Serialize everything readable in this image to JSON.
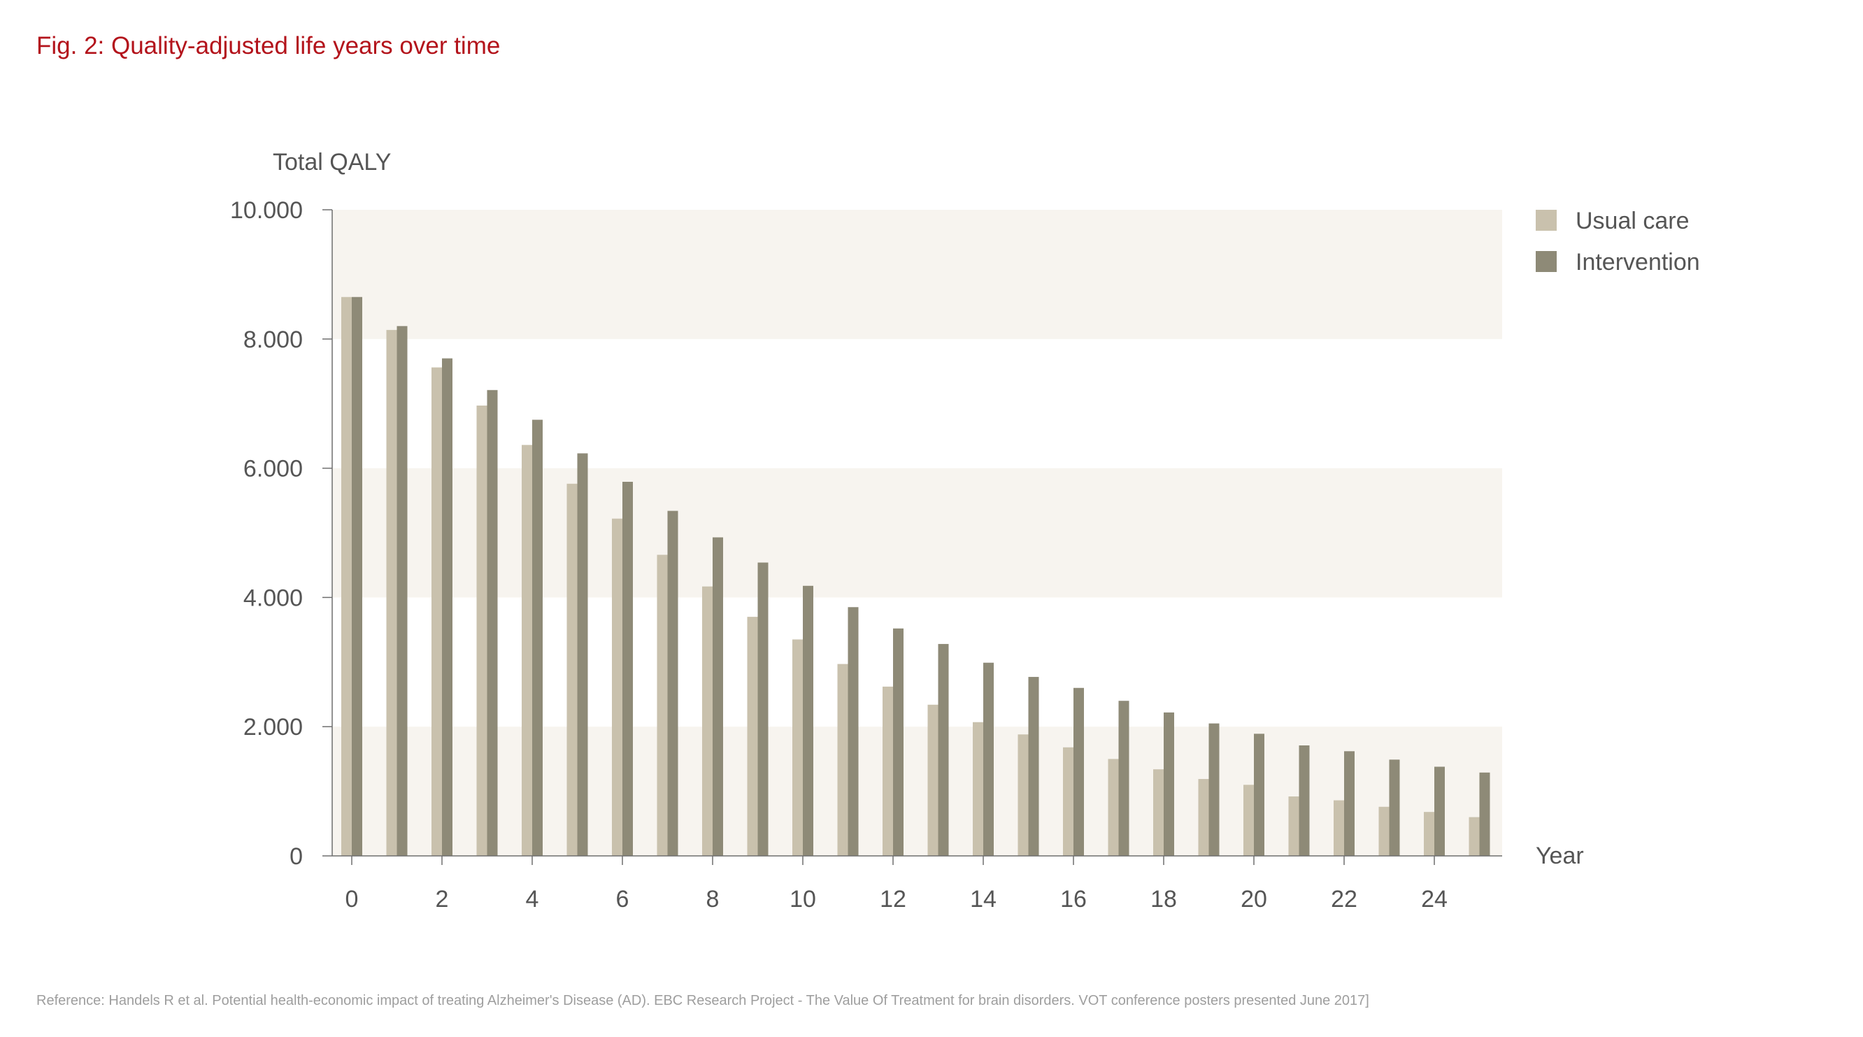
{
  "figure": {
    "title": "Fig. 2: Quality-adjusted life years over time",
    "reference": "Reference: Handels R et al. Potential health-economic impact of treating Alzheimer's Disease (AD). EBC Research Project - The Value Of Treatment for brain disorders. VOT conference posters presented June 2017]"
  },
  "chart_data": {
    "type": "bar",
    "title": "Fig. 2: Quality-adjusted life years over time",
    "xlabel": "Year",
    "ylabel": "Total QALY",
    "categories": [
      0,
      1,
      2,
      3,
      4,
      5,
      6,
      7,
      8,
      9,
      10,
      11,
      12,
      13,
      14,
      15,
      16,
      17,
      18,
      19,
      20,
      21,
      22,
      23,
      24,
      25
    ],
    "x_tick_labels": [
      "0",
      "2",
      "4",
      "6",
      "8",
      "10",
      "12",
      "14",
      "16",
      "18",
      "20",
      "22",
      "24"
    ],
    "y_tick_labels": [
      "0",
      "2.000",
      "4.000",
      "6.000",
      "8.000",
      "10.000"
    ],
    "ylim": [
      0,
      10000
    ],
    "y_ticks": [
      0,
      2000,
      4000,
      6000,
      8000,
      10000
    ],
    "legend_position": "top-right",
    "banded_background": true,
    "series": [
      {
        "name": "Usual care",
        "color": "#c9c1ad",
        "values": [
          8650,
          8140,
          7560,
          6970,
          6360,
          5760,
          5220,
          4660,
          4170,
          3700,
          3350,
          2970,
          2620,
          2340,
          2070,
          1880,
          1680,
          1500,
          1340,
          1190,
          1100,
          920,
          860,
          760,
          680,
          600
        ]
      },
      {
        "name": "Intervention",
        "color": "#8e8a77",
        "values": [
          8650,
          8200,
          7700,
          7210,
          6750,
          6230,
          5790,
          5340,
          4930,
          4540,
          4180,
          3850,
          3520,
          3280,
          2990,
          2770,
          2600,
          2400,
          2220,
          2050,
          1890,
          1710,
          1620,
          1490,
          1380,
          1290
        ]
      }
    ],
    "colors": {
      "band": "#f7f4ef",
      "axis": "#6f6f6f",
      "text": "#555555"
    }
  }
}
